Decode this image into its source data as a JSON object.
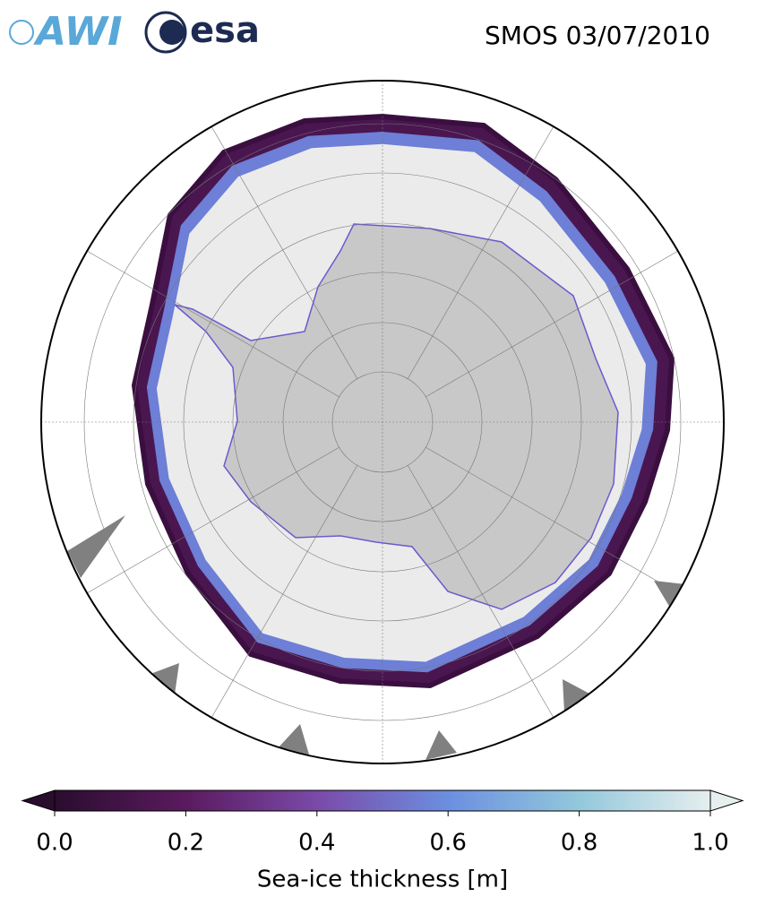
{
  "header": {
    "logos": [
      "AWI",
      "esa"
    ],
    "title": "SMOS 03/07/2010"
  },
  "colorbar": {
    "label": "Sea-ice thickness [m]",
    "lim": [
      0,
      1
    ],
    "ticks": [
      {
        "value": 0,
        "label": "0.0"
      },
      {
        "value": 0.2,
        "label": "0.2"
      },
      {
        "value": 0.4,
        "label": "0.4"
      },
      {
        "value": 0.6,
        "label": "0.6"
      },
      {
        "value": 0.8,
        "label": "0.8"
      },
      {
        "value": 1,
        "label": "1.0"
      }
    ],
    "colors": [
      "#2a0d2e",
      "#5a1a5e",
      "#7a4aa8",
      "#6b8fe0",
      "#93c8dc",
      "#e6eeee"
    ],
    "extend": "both"
  }
}
